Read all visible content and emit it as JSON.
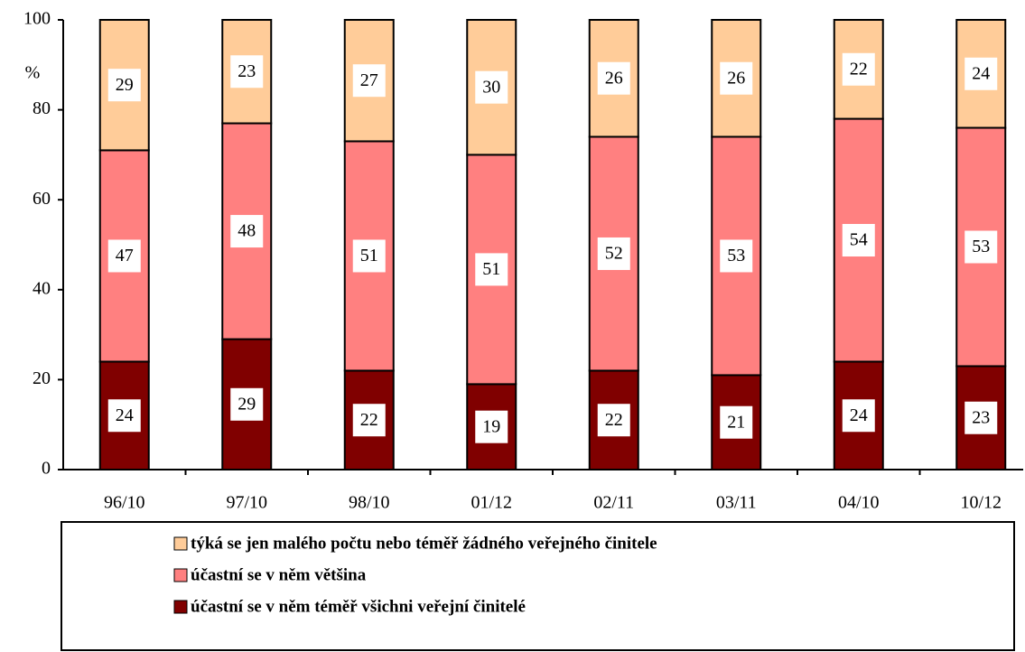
{
  "chart_data": {
    "type": "stacked_bar",
    "y_label": "%",
    "categories": [
      "96/10",
      "97/10",
      "98/10",
      "01/12",
      "02/11",
      "03/11",
      "04/10",
      "10/12"
    ],
    "series": [
      {
        "name": "týká se jen malého počtu nebo téměř žádného veřejného činitele",
        "color": "#ffcc99",
        "values": [
          29,
          23,
          27,
          30,
          26,
          26,
          22,
          24
        ]
      },
      {
        "name": "účastní se v něm většina",
        "color": "#ff8080",
        "values": [
          47,
          48,
          51,
          51,
          52,
          53,
          54,
          53
        ]
      },
      {
        "name": "účastní se v něm téměř všichni veřejní činitelé",
        "color": "#800000",
        "values": [
          24,
          29,
          22,
          19,
          22,
          21,
          24,
          23
        ]
      }
    ],
    "ylim": [
      0,
      100
    ],
    "yticks": [
      0,
      20,
      40,
      60,
      80,
      100
    ],
    "grid": false
  }
}
